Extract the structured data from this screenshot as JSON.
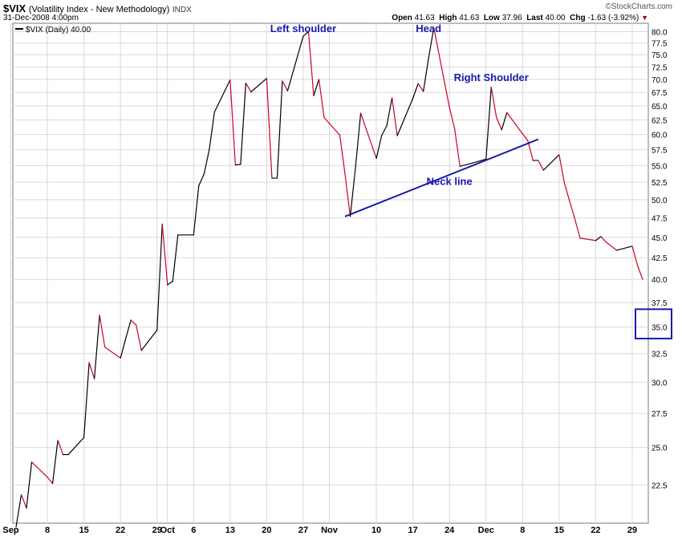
{
  "header": {
    "symbol": "$VIX",
    "description": "(Volatility Index - New Methodology)",
    "exchange": "INDX",
    "datetime": "31-Dec-2008 4:00pm",
    "brand": "©StockCharts.com",
    "open_label": "Open",
    "open": "41.63",
    "high_label": "High",
    "high": "41.63",
    "low_label": "Low",
    "low": "37.96",
    "last_label": "Last",
    "last": "40.00",
    "chg_label": "Chg",
    "chg": "-1.63 (-3.92%)"
  },
  "colors": {
    "up": "#000000",
    "down": "#cc0022",
    "annotation": "#1a1aa8",
    "grid": "#d9d9d9",
    "box": "#1a1aa8"
  },
  "chart_data": {
    "type": "line",
    "legend": "$VIX (Daily) 40.00",
    "y_scale": "log",
    "ylim": [
      19.8,
      81.5
    ],
    "yticks": [
      "22.5",
      "25.0",
      "27.5",
      "30.0",
      "32.5",
      "35.0",
      "37.5",
      "40.0",
      "42.5",
      "45.0",
      "47.5",
      "50.0",
      "52.5",
      "55.0",
      "57.5",
      "60.0",
      "62.5",
      "65.0",
      "67.5",
      "70.0",
      "72.5",
      "75.0",
      "77.5",
      "80.0"
    ],
    "xtick_labels": [
      "Sep",
      "8",
      "15",
      "22",
      "29",
      "Oct",
      "6",
      "13",
      "20",
      "27",
      "Nov",
      "10",
      "17",
      "24",
      "Dec",
      "8",
      "15",
      "22",
      "29"
    ],
    "xtick_dates": [
      "2008-09-01",
      "2008-09-08",
      "2008-09-15",
      "2008-09-22",
      "2008-09-29",
      "2008-10-01",
      "2008-10-06",
      "2008-10-13",
      "2008-10-20",
      "2008-10-27",
      "2008-11-01",
      "2008-11-10",
      "2008-11-17",
      "2008-11-24",
      "2008-12-01",
      "2008-12-08",
      "2008-12-15",
      "2008-12-22",
      "2008-12-29"
    ],
    "dates": [
      "2008-09-02",
      "2008-09-03",
      "2008-09-04",
      "2008-09-05",
      "2008-09-08",
      "2008-09-09",
      "2008-09-10",
      "2008-09-11",
      "2008-09-12",
      "2008-09-15",
      "2008-09-16",
      "2008-09-17",
      "2008-09-18",
      "2008-09-19",
      "2008-09-22",
      "2008-09-23",
      "2008-09-24",
      "2008-09-25",
      "2008-09-26",
      "2008-09-29",
      "2008-09-30",
      "2008-10-01",
      "2008-10-02",
      "2008-10-03",
      "2008-10-06",
      "2008-10-07",
      "2008-10-08",
      "2008-10-09",
      "2008-10-10",
      "2008-10-13",
      "2008-10-14",
      "2008-10-15",
      "2008-10-16",
      "2008-10-17",
      "2008-10-20",
      "2008-10-21",
      "2008-10-22",
      "2008-10-23",
      "2008-10-24",
      "2008-10-27",
      "2008-10-28",
      "2008-10-29",
      "2008-10-30",
      "2008-10-31",
      "2008-11-03",
      "2008-11-04",
      "2008-11-05",
      "2008-11-06",
      "2008-11-07",
      "2008-11-10",
      "2008-11-11",
      "2008-11-12",
      "2008-11-13",
      "2008-11-14",
      "2008-11-17",
      "2008-11-18",
      "2008-11-19",
      "2008-11-20",
      "2008-11-21",
      "2008-11-24",
      "2008-11-25",
      "2008-11-26",
      "2008-11-28",
      "2008-12-01",
      "2008-12-02",
      "2008-12-03",
      "2008-12-04",
      "2008-12-05",
      "2008-12-08",
      "2008-12-09",
      "2008-12-10",
      "2008-12-11",
      "2008-12-12",
      "2008-12-15",
      "2008-12-16",
      "2008-12-17",
      "2008-12-18",
      "2008-12-19",
      "2008-12-22",
      "2008-12-23",
      "2008-12-24",
      "2008-12-26",
      "2008-12-29",
      "2008-12-30",
      "2008-12-31"
    ],
    "values": [
      20.0,
      21.9,
      21.1,
      24.0,
      23.0,
      22.6,
      25.5,
      24.5,
      24.5,
      25.7,
      31.7,
      30.3,
      36.2,
      33.1,
      32.1,
      33.9,
      35.7,
      35.2,
      32.8,
      34.7,
      46.7,
      39.4,
      39.8,
      45.3,
      45.3,
      52.0,
      53.7,
      57.5,
      63.9,
      69.9,
      55.1,
      55.2,
      69.3,
      67.6,
      70.2,
      53.1,
      53.1,
      69.7,
      67.8,
      79.0,
      80.0,
      66.9,
      70.0,
      62.9,
      59.9,
      53.7,
      47.7,
      54.7,
      63.7,
      56.1,
      59.8,
      61.5,
      66.5,
      59.8,
      66.4,
      69.2,
      67.7,
      74.3,
      80.9,
      64.7,
      60.9,
      54.9,
      55.3,
      56.0,
      68.5,
      62.9,
      60.8,
      63.8,
      60.1,
      59.0,
      55.8,
      55.8,
      54.3,
      56.7,
      52.4,
      49.8,
      47.4,
      44.9,
      44.6,
      45.1,
      44.4,
      43.4,
      43.9,
      41.6,
      40.0
    ],
    "annotations": [
      {
        "text": "Left shoulder",
        "date": "2008-10-27",
        "value": 80.8
      },
      {
        "text": "Head",
        "date": "2008-11-20",
        "value": 80.8
      },
      {
        "text": "Right Shoulder",
        "date": "2008-12-02",
        "value": 70.5
      },
      {
        "text": "Neck line",
        "date": "2008-11-24",
        "value": 52.7
      }
    ],
    "neckline": [
      {
        "date": "2008-11-04",
        "value": 47.7
      },
      {
        "date": "2008-12-11",
        "value": 59.2
      }
    ],
    "highlight_box": {
      "value_range": [
        33.9,
        36.8
      ]
    }
  }
}
